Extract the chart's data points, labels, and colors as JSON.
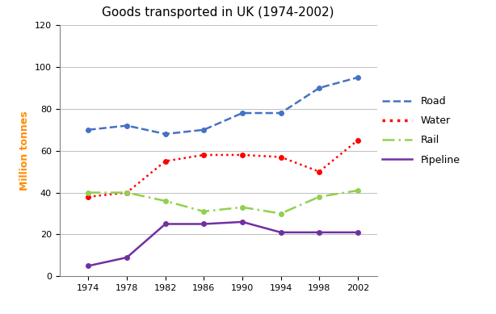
{
  "title": "Goods transported in UK (1974-2002)",
  "ylabel": "Million tonnes",
  "years": [
    1974,
    1978,
    1982,
    1986,
    1990,
    1994,
    1998,
    2002
  ],
  "road": [
    70,
    72,
    68,
    70,
    78,
    78,
    90,
    95
  ],
  "water": [
    38,
    40,
    55,
    58,
    58,
    57,
    50,
    65
  ],
  "rail": [
    40,
    40,
    36,
    31,
    33,
    30,
    38,
    41
  ],
  "pipeline": [
    5,
    9,
    25,
    25,
    26,
    21,
    21,
    21
  ],
  "road_color": "#4472c4",
  "water_color": "#ff0000",
  "rail_color": "#92d050",
  "pipeline_color": "#7030a0",
  "ylim": [
    0,
    120
  ],
  "yticks": [
    0,
    20,
    40,
    60,
    80,
    100,
    120
  ],
  "title_fontsize": 11,
  "ylabel_fontsize": 9,
  "legend_labels": [
    "Road",
    "Water",
    "Rail",
    "Pipeline"
  ],
  "background_color": "#ffffff",
  "grid_color": "#c0c0c0"
}
